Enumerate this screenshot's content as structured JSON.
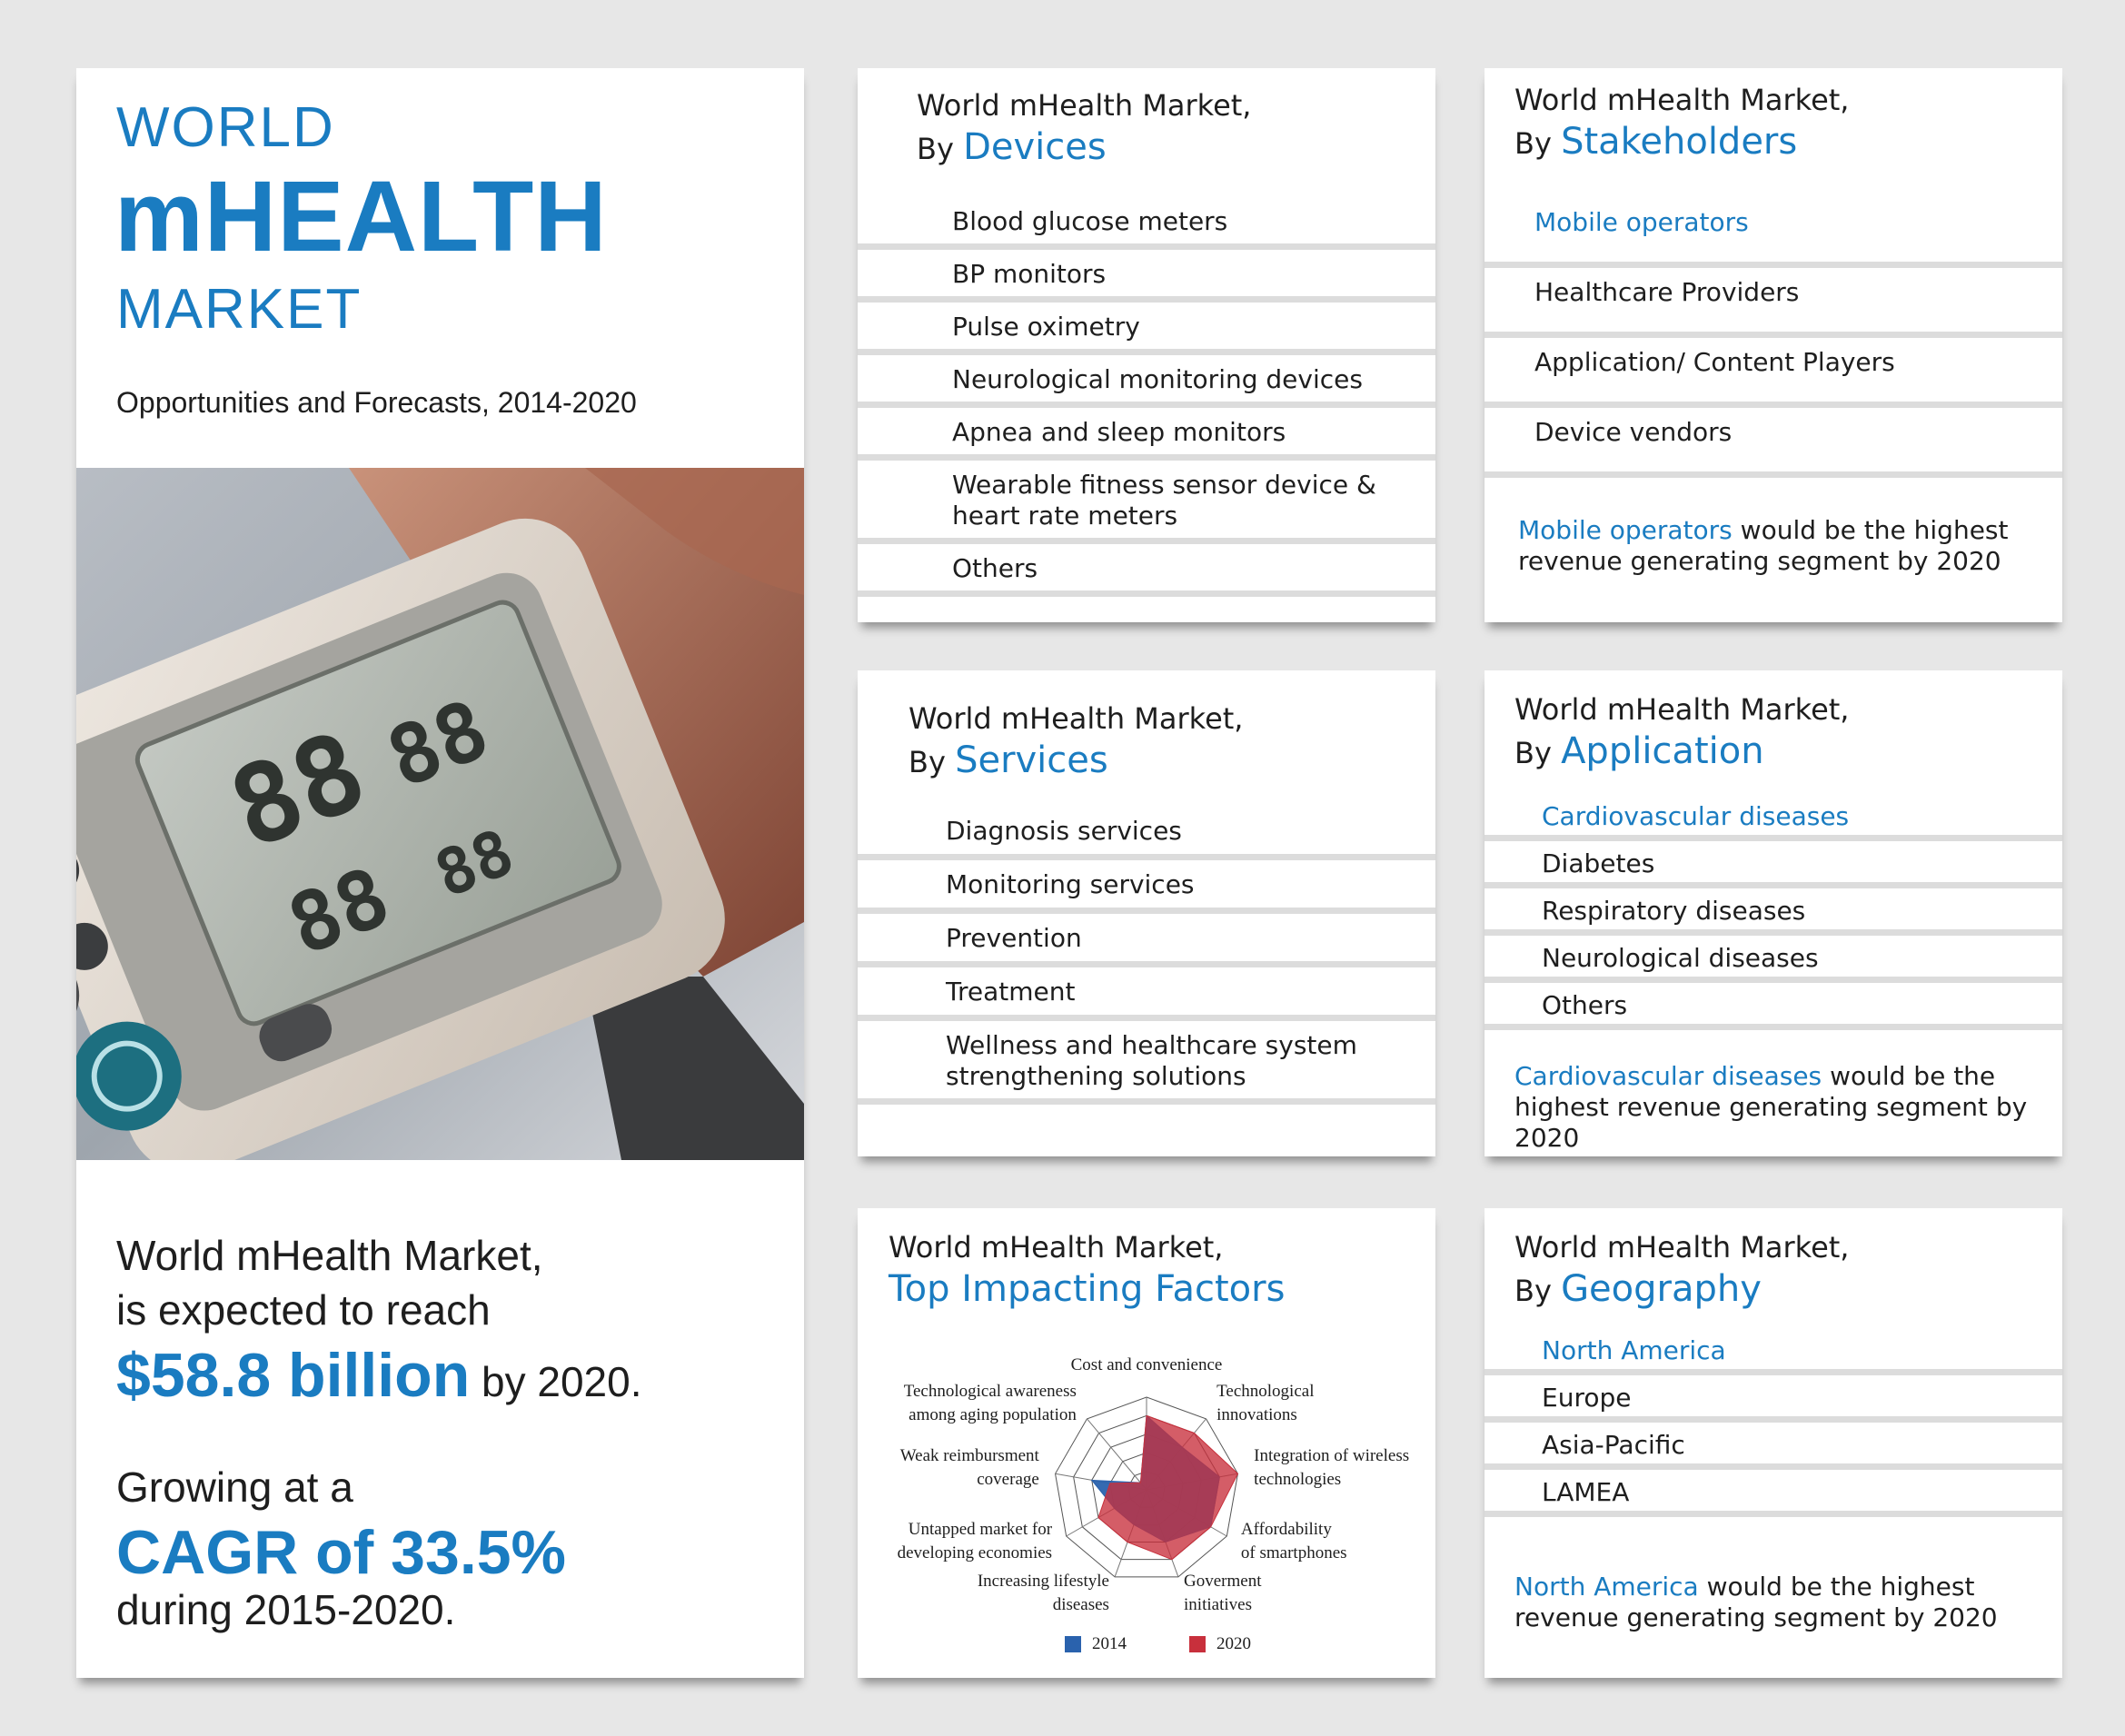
{
  "hero": {
    "title_world": "WORLD",
    "title_mhealth": "mHEALTH",
    "title_market": "MARKET",
    "subtitle": "Opportunities and Forecasts, 2014-2020",
    "reach_line1": "World mHealth Market,",
    "reach_line2": "is expected to reach",
    "reach_value": "$58.8 billion",
    "reach_suffix": "by 2020.",
    "growth_line1": "Growing at a",
    "growth_value": "CAGR of 33.5%",
    "growth_line3": "during 2015-2020."
  },
  "devices": {
    "header": "World mHealth Market,",
    "by": "By",
    "highlight": "Devices",
    "items": [
      "Blood glucose meters",
      "BP monitors",
      "Pulse oximetry",
      "Neurological monitoring devices",
      "Apnea and sleep monitors",
      "Wearable fitness sensor device & heart rate meters",
      "Others"
    ]
  },
  "stakeholders": {
    "header": "World mHealth Market,",
    "by": "By",
    "highlight": "Stakeholders",
    "items": [
      "Mobile operators",
      "Healthcare Providers",
      "Application/ Content Players",
      "Device vendors"
    ],
    "note_highlight": "Mobile operators",
    "note_text": "would be the highest revenue generating segment by 2020"
  },
  "services": {
    "header": "World mHealth Market,",
    "by": "By",
    "highlight": "Services",
    "items": [
      "Diagnosis services",
      "Monitoring services",
      "Prevention",
      "Treatment",
      "Wellness and healthcare system strengthening solutions"
    ]
  },
  "application": {
    "header": "World mHealth Market,",
    "by": "By",
    "highlight": "Application",
    "items": [
      "Cardiovascular diseases",
      "Diabetes",
      "Respiratory diseases",
      "Neurological diseases",
      "Others"
    ],
    "note_highlight": "Cardiovascular diseases",
    "note_text": "would be the highest revenue generating segment by 2020"
  },
  "factors": {
    "header": "World mHealth Market,",
    "highlight": "Top Impacting Factors"
  },
  "geography": {
    "header": "World mHealth Market,",
    "by": "By",
    "highlight": "Geography",
    "items": [
      "North America",
      "Europe",
      "Asia-Pacific",
      "LAMEA"
    ],
    "note_highlight": "North America",
    "note_text": "would be the highest revenue generating segment by 2020"
  },
  "colors": {
    "accent": "#1a7cc1",
    "series_2014": "#2a62ad",
    "series_2020": "#c8303c",
    "card": "#ffffff",
    "background": "#e7e7e7"
  },
  "chart_data": {
    "type": "radar",
    "title": "",
    "axes": [
      "Cost and convenience",
      "Technological innovations",
      "Integration of wireless technologies",
      "Affordability of smartphones",
      "Goverment initiatives",
      "Increasing lifestyle diseases",
      "Untapped market for developing economies",
      "Weak reimbursment coverage",
      "Technological awareness among aging population"
    ],
    "axis_labels": [
      [
        "Cost and convenience"
      ],
      [
        "Technological",
        "innovations"
      ],
      [
        "Integration of wireless",
        "technologies"
      ],
      [
        "Affordability",
        "of smartphones"
      ],
      [
        "Goverment",
        "initiatives"
      ],
      [
        "Increasing lifestyle",
        "diseases"
      ],
      [
        "Untapped market for",
        "developing economies"
      ],
      [
        "Weak reimbursment",
        "coverage"
      ],
      [
        "Technological awareness",
        "among aging population"
      ]
    ],
    "rings": 5,
    "range": [
      0,
      5
    ],
    "legend_position": "bottom-center",
    "series": [
      {
        "name": "2014",
        "values": [
          4,
          3,
          4,
          4,
          3,
          2,
          2,
          3,
          0.5
        ]
      },
      {
        "name": "2020",
        "values": [
          4,
          4,
          5,
          4,
          4,
          3,
          3,
          2,
          0.5
        ]
      }
    ]
  }
}
